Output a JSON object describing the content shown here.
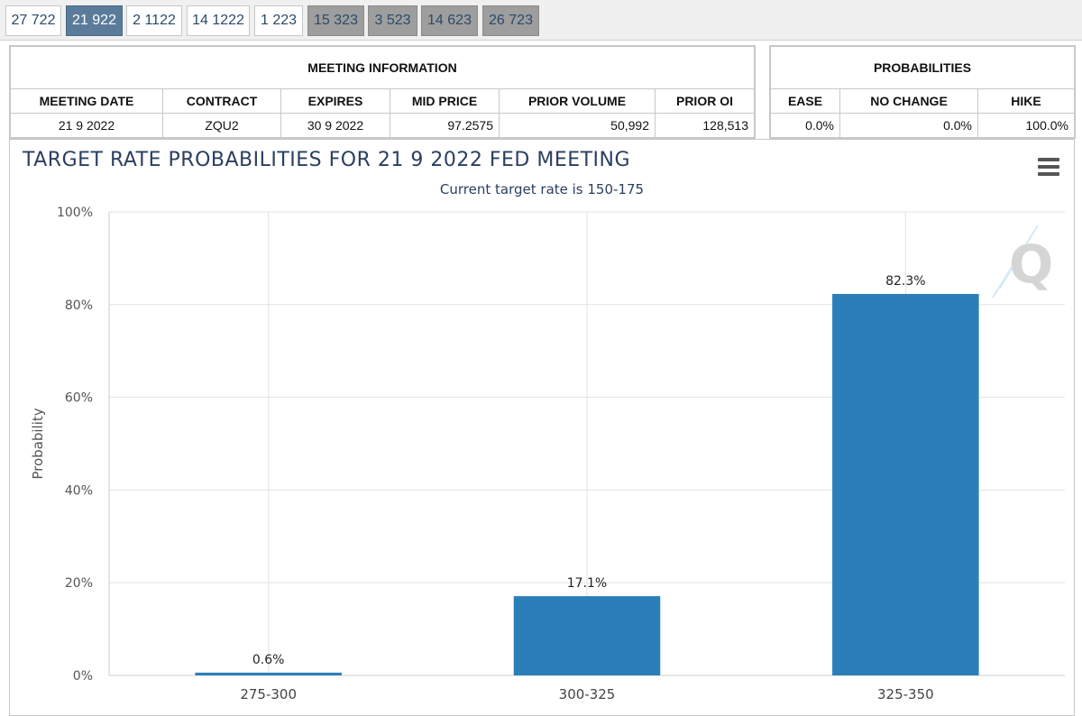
{
  "tabs": [
    {
      "label": "27 722",
      "state": "normal"
    },
    {
      "label": "21 922",
      "state": "active"
    },
    {
      "label": "2 1122",
      "state": "normal"
    },
    {
      "label": "14 1222",
      "state": "normal"
    },
    {
      "label": "1 223",
      "state": "normal"
    },
    {
      "label": "15 323",
      "state": "gray"
    },
    {
      "label": "3 523",
      "state": "gray"
    },
    {
      "label": "14 623",
      "state": "gray"
    },
    {
      "label": "26 723",
      "state": "gray"
    }
  ],
  "meeting_info": {
    "caption": "MEETING INFORMATION",
    "headers": [
      "MEETING DATE",
      "CONTRACT",
      "EXPIRES",
      "MID PRICE",
      "PRIOR VOLUME",
      "PRIOR OI"
    ],
    "values": [
      "21 9 2022",
      "ZQU2",
      "30 9 2022",
      "97.2575",
      "50,992",
      "128,513"
    ]
  },
  "probabilities": {
    "caption": "PROBABILITIES",
    "headers": [
      "EASE",
      "NO CHANGE",
      "HIKE"
    ],
    "values": [
      "0.0%",
      "0.0%",
      "100.0%"
    ]
  },
  "chart_data": {
    "type": "bar",
    "title": "TARGET RATE PROBABILITIES FOR 21 9 2022 FED MEETING",
    "subtitle": "Current target rate is 150-175",
    "ylabel": "Probability",
    "xlabel": "",
    "categories": [
      "275-300",
      "300-325",
      "325-350"
    ],
    "values": [
      0.6,
      17.1,
      82.3
    ],
    "data_labels": [
      "0.6%",
      "17.1%",
      "82.3%"
    ],
    "ylim": [
      0,
      100
    ],
    "yticks": [
      0,
      20,
      40,
      60,
      80,
      100
    ],
    "ytick_labels": [
      "0%",
      "20%",
      "40%",
      "60%",
      "80%",
      "100%"
    ],
    "grid": true,
    "bar_color": "#2a7fb8"
  },
  "menu_icon": "hamburger-menu-icon"
}
